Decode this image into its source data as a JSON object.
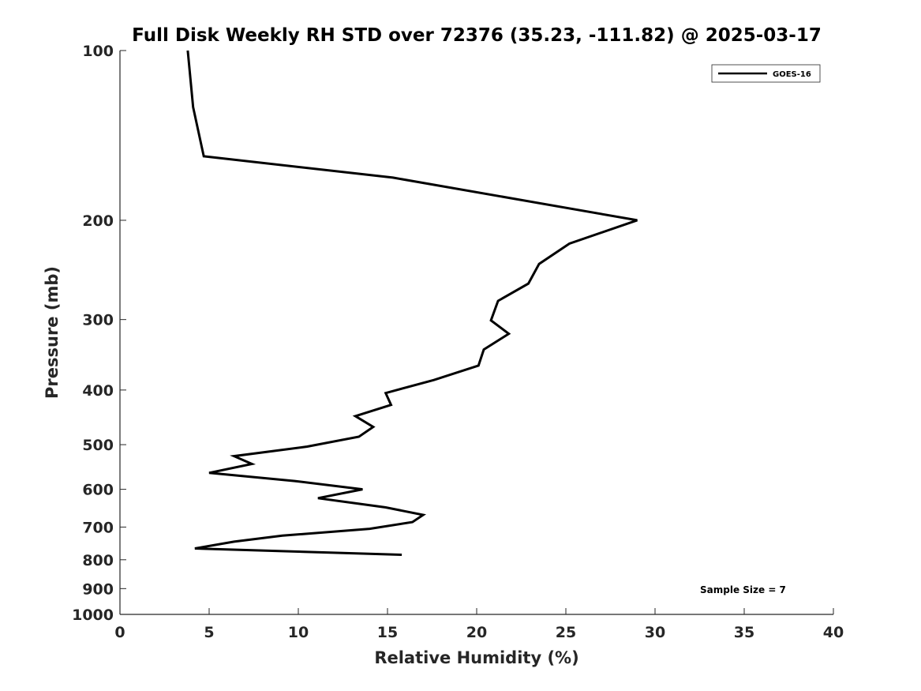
{
  "chart_data": {
    "type": "line",
    "title": "Full Disk Weekly RH STD over 72376 (35.23, -111.82) @ 2025-03-17",
    "xlabel": "Relative Humidity (%)",
    "ylabel": "Pressure (mb)",
    "xlim": [
      0,
      40
    ],
    "ylim": [
      100,
      1000
    ],
    "y_scale": "log",
    "y_reversed": true,
    "x_ticks": [
      0,
      5,
      10,
      15,
      20,
      25,
      30,
      35,
      40
    ],
    "y_ticks": [
      100,
      200,
      300,
      400,
      500,
      600,
      700,
      800,
      900,
      1000
    ],
    "grid": false,
    "legend_position": "top-right",
    "annotation": "Sample Size = 7",
    "series": [
      {
        "name": "GOES-16",
        "color": "#000000",
        "points": [
          [
            3.8,
            100
          ],
          [
            4.1,
            126
          ],
          [
            4.7,
            154
          ],
          [
            15.3,
            168
          ],
          [
            29.0,
            200
          ],
          [
            25.2,
            220
          ],
          [
            23.5,
            239
          ],
          [
            22.9,
            259
          ],
          [
            21.2,
            278
          ],
          [
            20.8,
            301
          ],
          [
            21.8,
            318
          ],
          [
            20.4,
            339
          ],
          [
            20.1,
            362
          ],
          [
            17.6,
            384
          ],
          [
            14.9,
            405
          ],
          [
            15.2,
            425
          ],
          [
            13.2,
            445
          ],
          [
            14.2,
            465
          ],
          [
            13.4,
            484
          ],
          [
            10.5,
            504
          ],
          [
            6.4,
            524
          ],
          [
            7.4,
            541
          ],
          [
            5.0,
            561
          ],
          [
            9.8,
            580
          ],
          [
            13.6,
            600
          ],
          [
            11.1,
            622
          ],
          [
            14.9,
            646
          ],
          [
            17.0,
            666
          ],
          [
            16.4,
            686
          ],
          [
            14.0,
            705
          ],
          [
            9.1,
            725
          ],
          [
            6.4,
            743
          ],
          [
            4.2,
            764
          ],
          [
            15.8,
            784
          ]
        ]
      }
    ]
  }
}
